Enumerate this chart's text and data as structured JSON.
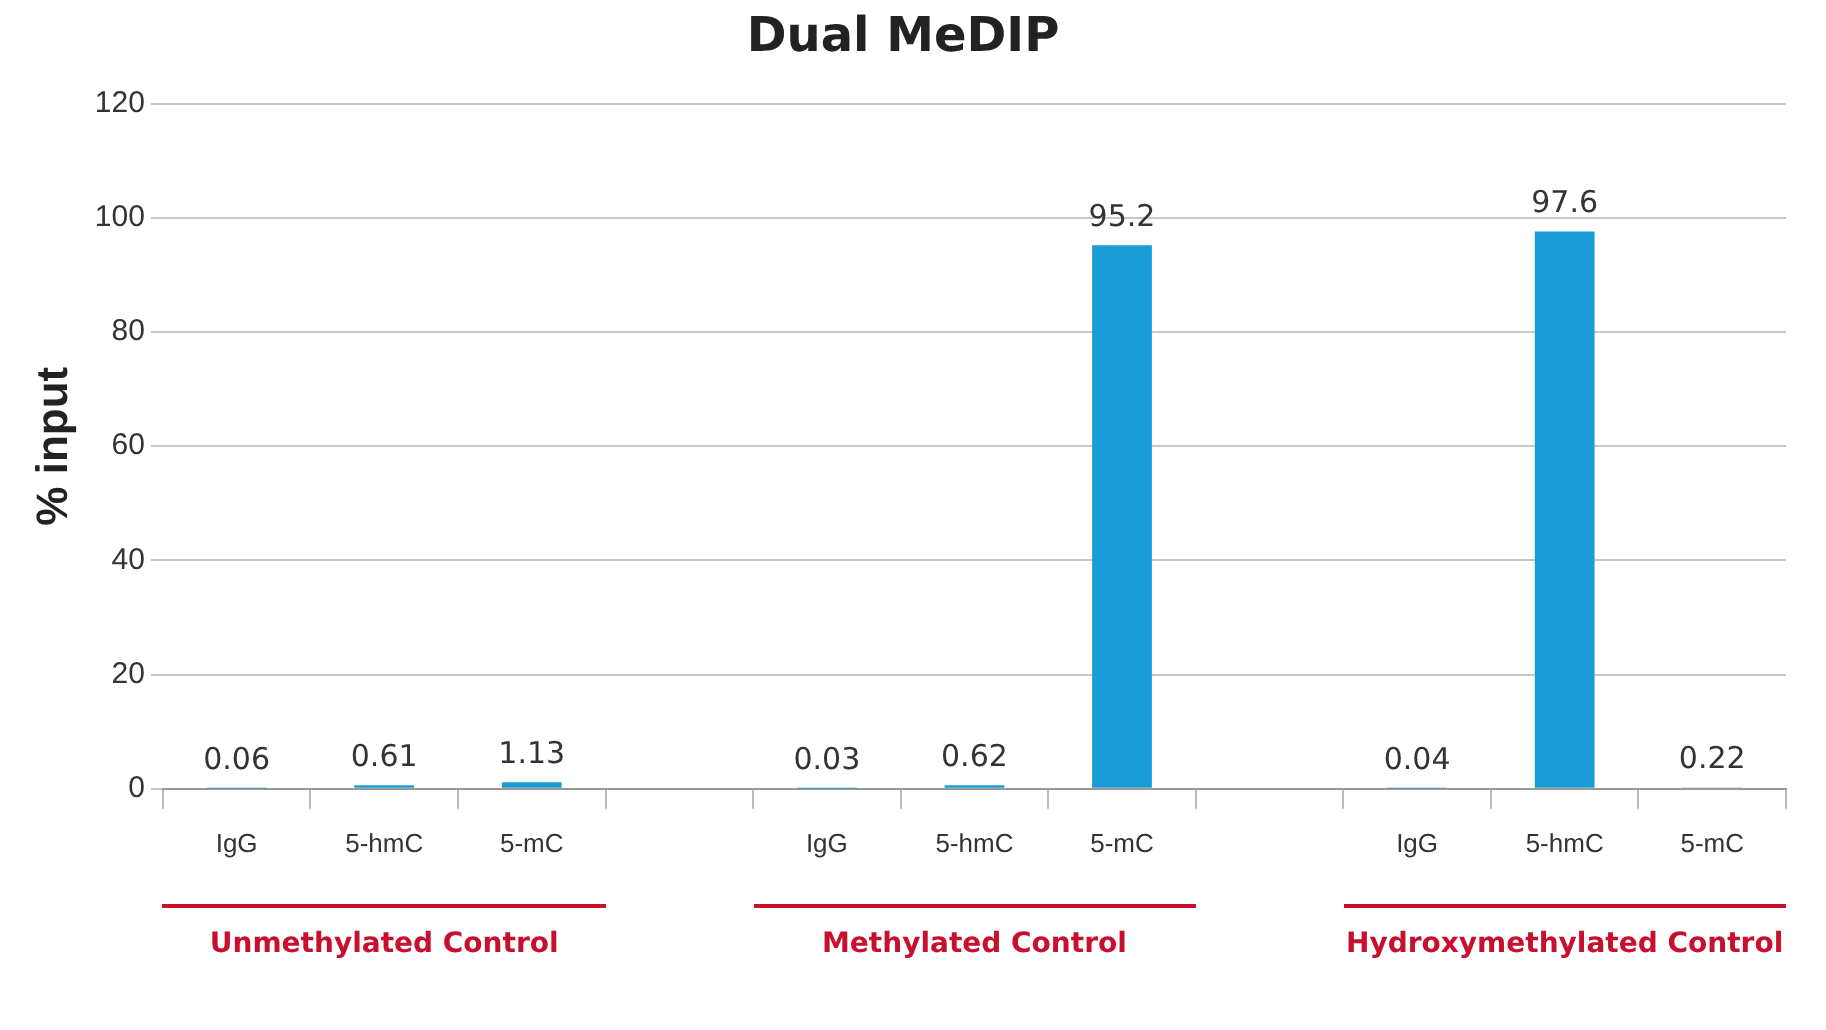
{
  "chart_data": {
    "type": "bar",
    "title": "Dual MeDIP",
    "ylabel": "% input",
    "categories": [
      "IgG",
      "5-hmC",
      "5-mC",
      null,
      "IgG",
      "5-hmC",
      "5-mC",
      null,
      "IgG",
      "5-hmC",
      "5-mC"
    ],
    "values": [
      0.06,
      0.61,
      1.13,
      null,
      0.03,
      0.62,
      95.2,
      null,
      0.04,
      97.6,
      0.22
    ],
    "color": "#1a9cd8",
    "ylim": [
      0,
      120
    ],
    "yticks": [
      0,
      20,
      40,
      60,
      80,
      100,
      120
    ],
    "grid": "y",
    "data_labels": true,
    "legend": false,
    "annotations": [
      "Unmethylated Control",
      "Methylated Control",
      "Hydroxymethylated Control"
    ]
  }
}
